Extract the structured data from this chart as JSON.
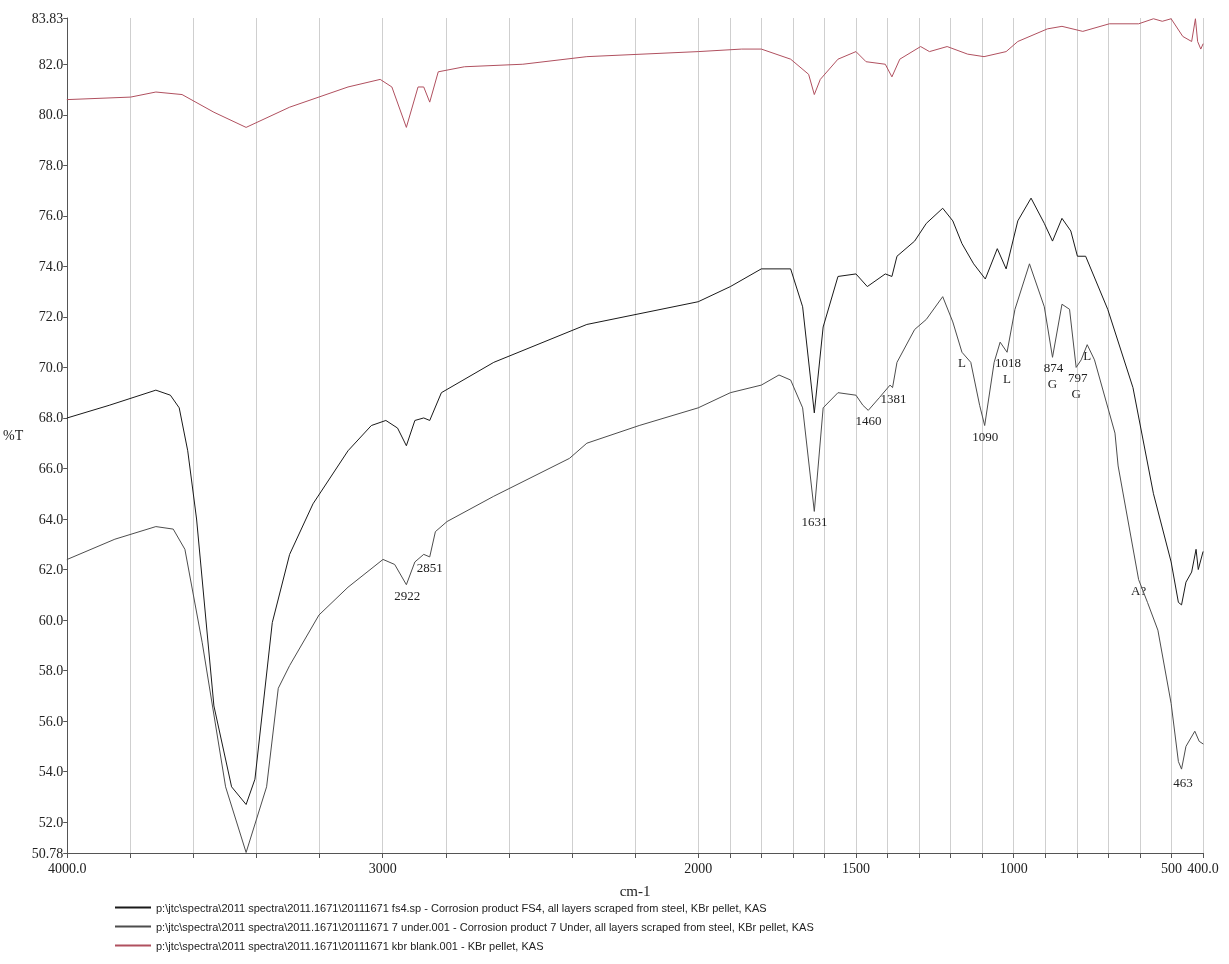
{
  "chart_data": {
    "type": "line",
    "xlabel": "cm-1",
    "ylabel": "%T",
    "xlim": [
      4000,
      400
    ],
    "ylim": [
      50.78,
      83.83
    ],
    "xticks": [
      {
        "value": 4000,
        "label": "4000.0"
      },
      {
        "value": 3800,
        "label": null
      },
      {
        "value": 3600,
        "label": null
      },
      {
        "value": 3400,
        "label": null
      },
      {
        "value": 3200,
        "label": null
      },
      3000,
      {
        "value": 2800,
        "label": null
      },
      {
        "value": 2600,
        "label": null
      },
      {
        "value": 2400,
        "label": null
      },
      {
        "value": 2200,
        "label": null
      },
      2000,
      {
        "value": 1900,
        "label": null
      },
      {
        "value": 1800,
        "label": null
      },
      {
        "value": 1700,
        "label": null
      },
      {
        "value": 1600,
        "label": null
      },
      1500,
      {
        "value": 1400,
        "label": null
      },
      {
        "value": 1300,
        "label": null
      },
      {
        "value": 1200,
        "label": null
      },
      {
        "value": 1100,
        "label": null
      },
      1000,
      {
        "value": 900,
        "label": null
      },
      {
        "value": 800,
        "label": null
      },
      {
        "value": 700,
        "label": null
      },
      {
        "value": 600,
        "label": null
      },
      500,
      {
        "value": 400,
        "label": "400.0"
      }
    ],
    "yticks": [
      50.78,
      {
        "value": 52,
        "label": "52.0"
      },
      {
        "value": 54,
        "label": "54.0"
      },
      {
        "value": 56,
        "label": "56.0"
      },
      {
        "value": 58,
        "label": "58.0"
      },
      {
        "value": 60,
        "label": "60.0"
      },
      {
        "value": 62,
        "label": "62.0"
      },
      {
        "value": 64,
        "label": "64.0"
      },
      {
        "value": 66,
        "label": "66.0"
      },
      {
        "value": 68,
        "label": "68.0"
      },
      {
        "value": 70,
        "label": "70.0"
      },
      {
        "value": 72,
        "label": "72.0"
      },
      {
        "value": 74,
        "label": "74.0"
      },
      {
        "value": 76,
        "label": "76.0"
      },
      {
        "value": 78,
        "label": "78.0"
      },
      {
        "value": 80,
        "label": "80.0"
      },
      {
        "value": 82,
        "label": "82.0"
      },
      83.83
    ],
    "grid": "x",
    "legend": "bottom",
    "marker": "none",
    "line_style": "solid",
    "series": [
      {
        "name": "p:\\jtc\\spectra\\2011 spectra\\2011.1671\\20111671 fs4.sp - Corrosion product FS4, all layers scraped from steel, KBr pellet, KAS",
        "color": "#1a1a1a",
        "x": [
          4000,
          3867,
          3719,
          3673,
          3645,
          3618,
          3590,
          3535,
          3479,
          3433,
          3405,
          3350,
          3295,
          3221,
          3110,
          3036,
          2990,
          2953,
          2925,
          2898,
          2870,
          2851,
          2814,
          2648,
          2353,
          2000,
          1898,
          1800,
          1707,
          1669,
          1632,
          1604,
          1557,
          1500,
          1464,
          1407,
          1386,
          1370,
          1314,
          1277,
          1225,
          1193,
          1164,
          1127,
          1090,
          1052,
          1024,
          987,
          945,
          903,
          877,
          847,
          819,
          798,
          772,
          702,
          622,
          557,
          501,
          478,
          468,
          454,
          436,
          422,
          415,
          400
        ],
        "values": [
          68.0,
          68.5,
          69.1,
          68.9,
          68.4,
          66.7,
          64.0,
          56.6,
          53.4,
          52.7,
          53.7,
          59.9,
          62.6,
          64.6,
          66.7,
          67.7,
          67.9,
          67.6,
          66.9,
          67.9,
          68.0,
          67.9,
          69.0,
          70.2,
          71.7,
          72.6,
          73.2,
          73.9,
          73.9,
          72.4,
          68.2,
          71.6,
          73.6,
          73.7,
          73.2,
          73.7,
          73.6,
          74.4,
          75.0,
          75.7,
          76.3,
          75.8,
          74.9,
          74.1,
          73.5,
          74.7,
          73.9,
          75.8,
          76.7,
          75.7,
          75.0,
          75.9,
          75.4,
          74.4,
          74.4,
          72.3,
          69.2,
          65.0,
          62.3,
          60.7,
          60.6,
          61.5,
          61.9,
          62.8,
          62.0,
          62.7
        ]
      },
      {
        "name": "p:\\jtc\\spectra\\2011 spectra\\2011.1671\\20111671 7 under.001 - Corrosion product 7 Under, all layers scraped from steel, KBr pellet, KAS",
        "color": "#4d4d4d",
        "x": [
          4000,
          3849,
          3719,
          3664,
          3627,
          3572,
          3498,
          3433,
          3368,
          3331,
          3295,
          3202,
          3110,
          2999,
          2962,
          2925,
          2898,
          2870,
          2851,
          2833,
          2796,
          2648,
          2408,
          2353,
          2187,
          2000,
          1898,
          1800,
          1744,
          1707,
          1669,
          1632,
          1604,
          1557,
          1500,
          1478,
          1461,
          1426,
          1392,
          1384,
          1370,
          1314,
          1277,
          1225,
          1193,
          1164,
          1136,
          1108,
          1092,
          1062,
          1043,
          1021,
          996,
          950,
          903,
          877,
          847,
          823,
          802,
          786,
          767,
          744,
          679,
          669,
          604,
          576,
          543,
          501,
          478,
          468,
          454,
          426,
          412,
          400
        ],
        "values": [
          62.4,
          63.2,
          63.7,
          63.6,
          62.8,
          59.1,
          53.4,
          50.8,
          53.4,
          57.3,
          58.2,
          60.2,
          61.3,
          62.4,
          62.2,
          61.4,
          62.3,
          62.6,
          62.5,
          63.5,
          63.9,
          64.9,
          66.4,
          67.0,
          67.7,
          68.4,
          69.0,
          69.3,
          69.7,
          69.5,
          68.4,
          64.3,
          68.4,
          69.0,
          68.9,
          68.5,
          68.3,
          68.8,
          69.3,
          69.2,
          70.2,
          71.5,
          71.9,
          72.8,
          71.8,
          70.6,
          70.2,
          68.5,
          67.7,
          70.2,
          71.0,
          70.6,
          72.3,
          74.1,
          72.4,
          70.4,
          72.5,
          72.3,
          70.0,
          70.3,
          70.9,
          70.3,
          67.4,
          66.1,
          61.6,
          60.7,
          59.6,
          56.7,
          54.4,
          54.1,
          55.0,
          55.6,
          55.2,
          55.1
        ]
      },
      {
        "name": "p:\\jtc\\spectra\\2011 spectra\\2011.1671\\20111671 kbr blank.001 - KBr pellet, KAS",
        "color": "#b0505f",
        "x": [
          4000,
          3799,
          3719,
          3636,
          3535,
          3433,
          3295,
          3110,
          3008,
          2971,
          2925,
          2888,
          2870,
          2851,
          2824,
          2741,
          2556,
          2353,
          2000,
          1862,
          1800,
          1707,
          1650,
          1632,
          1613,
          1557,
          1500,
          1468,
          1407,
          1386,
          1361,
          1295,
          1267,
          1211,
          1146,
          1094,
          1024,
          987,
          893,
          847,
          781,
          697,
          604,
          557,
          529,
          501,
          464,
          436,
          424,
          417,
          407,
          400
        ],
        "values": [
          80.6,
          80.7,
          80.9,
          80.8,
          80.1,
          79.5,
          80.3,
          81.1,
          81.4,
          81.1,
          79.5,
          81.1,
          81.1,
          80.5,
          81.7,
          81.9,
          82.0,
          82.3,
          82.5,
          82.6,
          82.6,
          82.2,
          81.6,
          80.8,
          81.4,
          82.2,
          82.5,
          82.1,
          82.0,
          81.5,
          82.2,
          82.7,
          82.5,
          82.7,
          82.4,
          82.3,
          82.5,
          82.9,
          83.4,
          83.5,
          83.3,
          83.6,
          83.6,
          83.8,
          83.7,
          83.8,
          83.1,
          82.9,
          83.8,
          82.9,
          82.6,
          82.8
        ]
      }
    ],
    "annotations": [
      {
        "text": "2922",
        "x": 2922,
        "y": 61.4
      },
      {
        "text": "2851",
        "x": 2851,
        "y": 62.5
      },
      {
        "text": "1631",
        "x": 1631,
        "y": 64.3
      },
      {
        "text": "1460",
        "x": 1460,
        "y": 68.3
      },
      {
        "text": "1381",
        "x": 1381,
        "y": 69.2
      },
      {
        "text": "1090",
        "x": 1090,
        "y": 67.7
      },
      {
        "text": "1018",
        "x": 1018,
        "y": 70.6
      },
      {
        "text": "874",
        "x": 874,
        "y": 70.4
      },
      {
        "text": "797",
        "x": 797,
        "y": 70.0
      },
      {
        "text": "463",
        "x": 463,
        "y": 54.0
      },
      {
        "text": "L",
        "x": 1164,
        "y": 70.6
      },
      {
        "text": "L",
        "x": 1021,
        "y": 70.6
      },
      {
        "text": "G",
        "x": 877,
        "y": 70.4
      },
      {
        "text": "G",
        "x": 802,
        "y": 70.0
      },
      {
        "text": "L",
        "x": 767,
        "y": 70.9
      },
      {
        "text": "A?",
        "x": 604,
        "y": 61.6
      }
    ]
  }
}
